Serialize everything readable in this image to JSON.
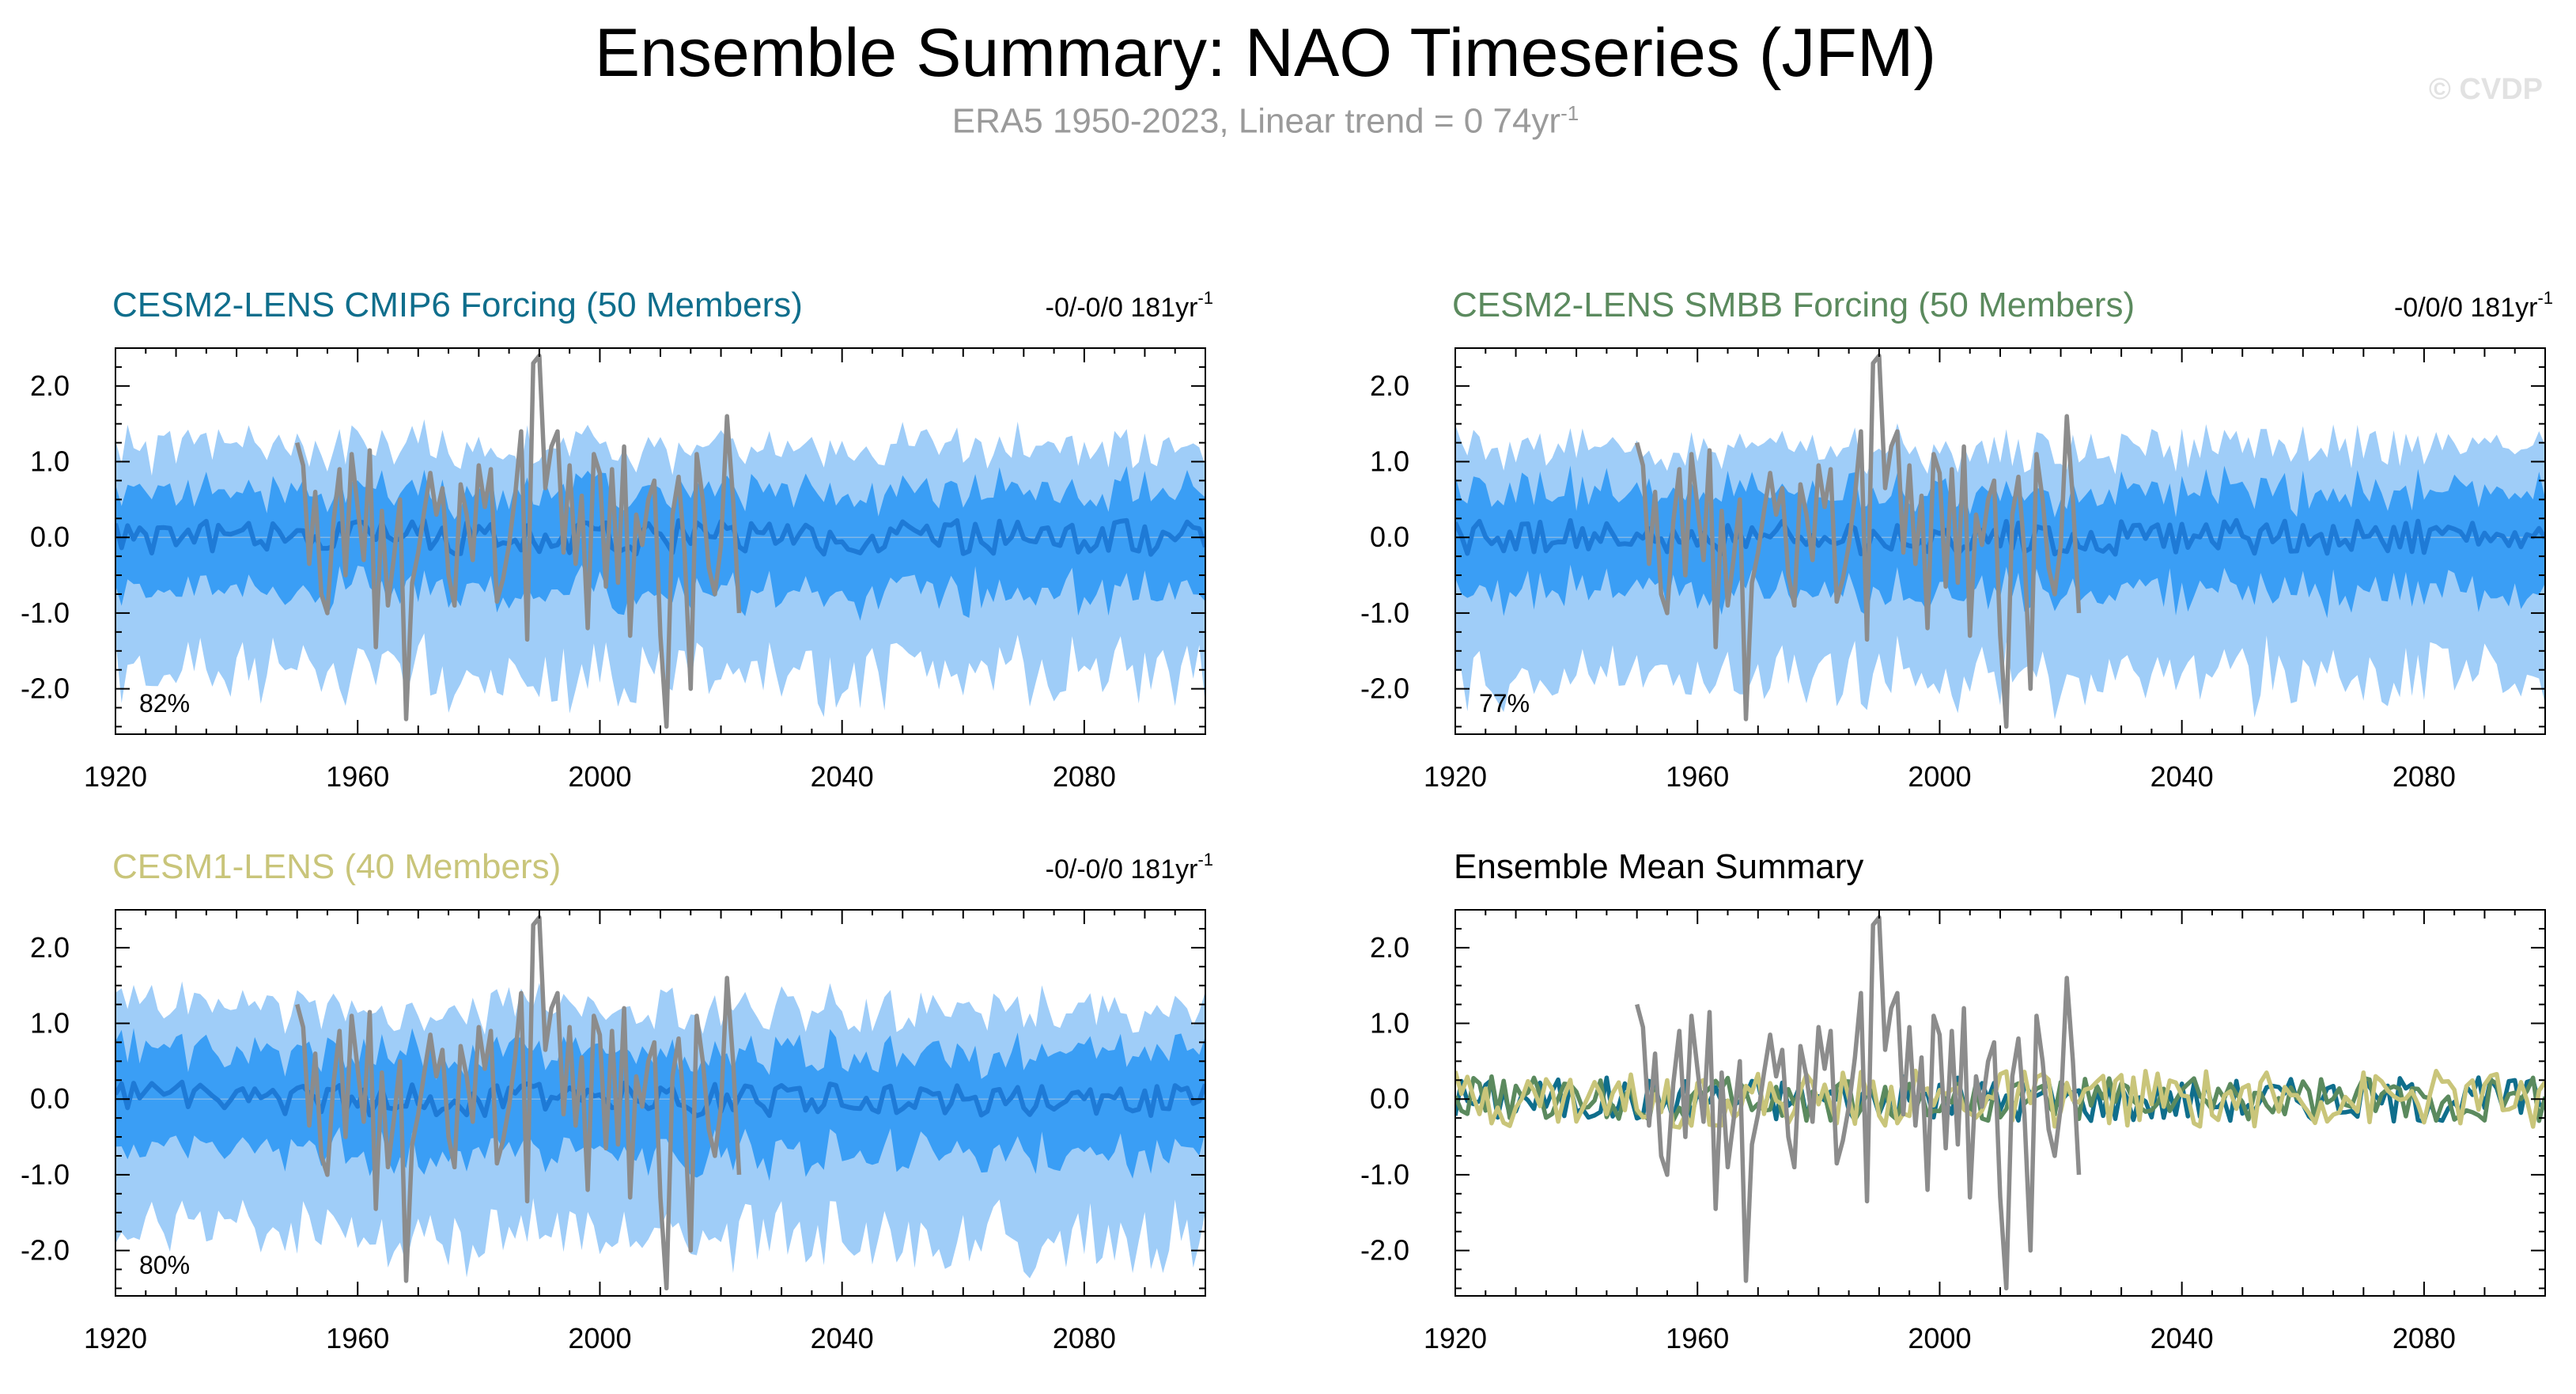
{
  "header": {
    "title": "Ensemble Summary: NAO Timeseries (JFM)",
    "subtitle": "ERA5 1950-2023, Linear trend = 0 74yr",
    "subtitle_sup": "-1",
    "watermark": "© CVDP"
  },
  "colors": {
    "band_outer": "#9fcdf8",
    "band_inner": "#3a9ef5",
    "ens_mean": "#1e7ad6",
    "observed": "#8c8c8c",
    "cesm2_cmip6": "#0f6e8c",
    "cesm2_smbb": "#5b8a5e",
    "cesm1": "#c9c57a"
  },
  "chart_data": [
    {
      "id": "cesm2_cmip6",
      "type": "area",
      "title": "CESM2-LENS CMIP6 Forcing (50 Members)",
      "trend_label": "-0/-0/0 181yr",
      "trend_sup": "-1",
      "percent_label": "82%",
      "xlim": [
        1920,
        2100
      ],
      "ylim": [
        -2.6,
        2.5
      ],
      "xticks": [
        "1920",
        "1960",
        "2000",
        "2040",
        "2080"
      ],
      "yticks": [
        "2.0",
        "1.0",
        "0.0",
        "-1.0",
        "-2.0"
      ],
      "series": [
        "ensemble 10-90% range",
        "ensemble 25-75% range",
        "ensemble mean",
        "ERA5"
      ],
      "seed": 11
    },
    {
      "id": "cesm2_smbb",
      "type": "area",
      "title": "CESM2-LENS SMBB Forcing (50 Members)",
      "trend_label": "-0/0/0 181yr",
      "trend_sup": "-1",
      "percent_label": "77%",
      "xlim": [
        1920,
        2100
      ],
      "ylim": [
        -2.6,
        2.5
      ],
      "xticks": [
        "1920",
        "1960",
        "2000",
        "2040",
        "2080"
      ],
      "yticks": [
        "2.0",
        "1.0",
        "0.0",
        "-1.0",
        "-2.0"
      ],
      "series": [
        "ensemble 10-90% range",
        "ensemble 25-75% range",
        "ensemble mean",
        "ERA5"
      ],
      "seed": 23
    },
    {
      "id": "cesm1",
      "type": "area",
      "title": "CESM1-LENS (40 Members)",
      "trend_label": "-0/-0/0 181yr",
      "trend_sup": "-1",
      "percent_label": "80%",
      "xlim": [
        1920,
        2100
      ],
      "ylim": [
        -2.6,
        2.5
      ],
      "xticks": [
        "1920",
        "1960",
        "2000",
        "2040",
        "2080"
      ],
      "yticks": [
        "2.0",
        "1.0",
        "0.0",
        "-1.0",
        "-2.0"
      ],
      "series": [
        "ensemble 10-90% range",
        "ensemble 25-75% range",
        "ensemble mean",
        "ERA5"
      ],
      "seed": 37
    },
    {
      "id": "ens_mean_summary",
      "type": "line",
      "title": "Ensemble Mean Summary",
      "xlim": [
        1920,
        2100
      ],
      "ylim": [
        -2.6,
        2.5
      ],
      "xticks": [
        "1920",
        "1960",
        "2000",
        "2040",
        "2080"
      ],
      "yticks": [
        "2.0",
        "1.0",
        "0.0",
        "-1.0",
        "-2.0"
      ],
      "series": [
        "ERA5",
        "CESM2-LENS CMIP6 Forcing",
        "CESM2-LENS SMBB Forcing",
        "CESM1-LENS"
      ]
    }
  ],
  "observed_nao": {
    "name": "ERA5",
    "start_year": 1950,
    "values": [
      1.25,
      0.95,
      -0.35,
      0.6,
      -0.75,
      -1.0,
      0.2,
      0.9,
      -0.5,
      1.1,
      0.4,
      -0.3,
      1.15,
      -1.45,
      0.35,
      -0.9,
      -0.25,
      0.5,
      -2.4,
      -0.6,
      -0.2,
      0.35,
      0.85,
      0.3,
      0.65,
      -0.5,
      -0.9,
      0.7,
      0.3,
      -0.3,
      0.95,
      0.4,
      0.9,
      -0.85,
      -0.55,
      -0.1,
      0.55,
      1.4,
      -1.35,
      2.3,
      2.4,
      0.65,
      1.2,
      1.4,
      -0.2,
      0.95,
      -0.35,
      0.55,
      -1.2,
      1.1,
      0.85,
      -0.65,
      0.9,
      -0.6,
      1.2,
      -1.3,
      0.3,
      -0.1,
      0.5,
      0.75,
      -1.3,
      -2.5,
      0.3,
      0.8,
      -0.2,
      -2.0,
      1.1,
      0.5,
      -0.4,
      -0.75,
      -0.1,
      1.6,
      0.5,
      -1.0
    ]
  }
}
